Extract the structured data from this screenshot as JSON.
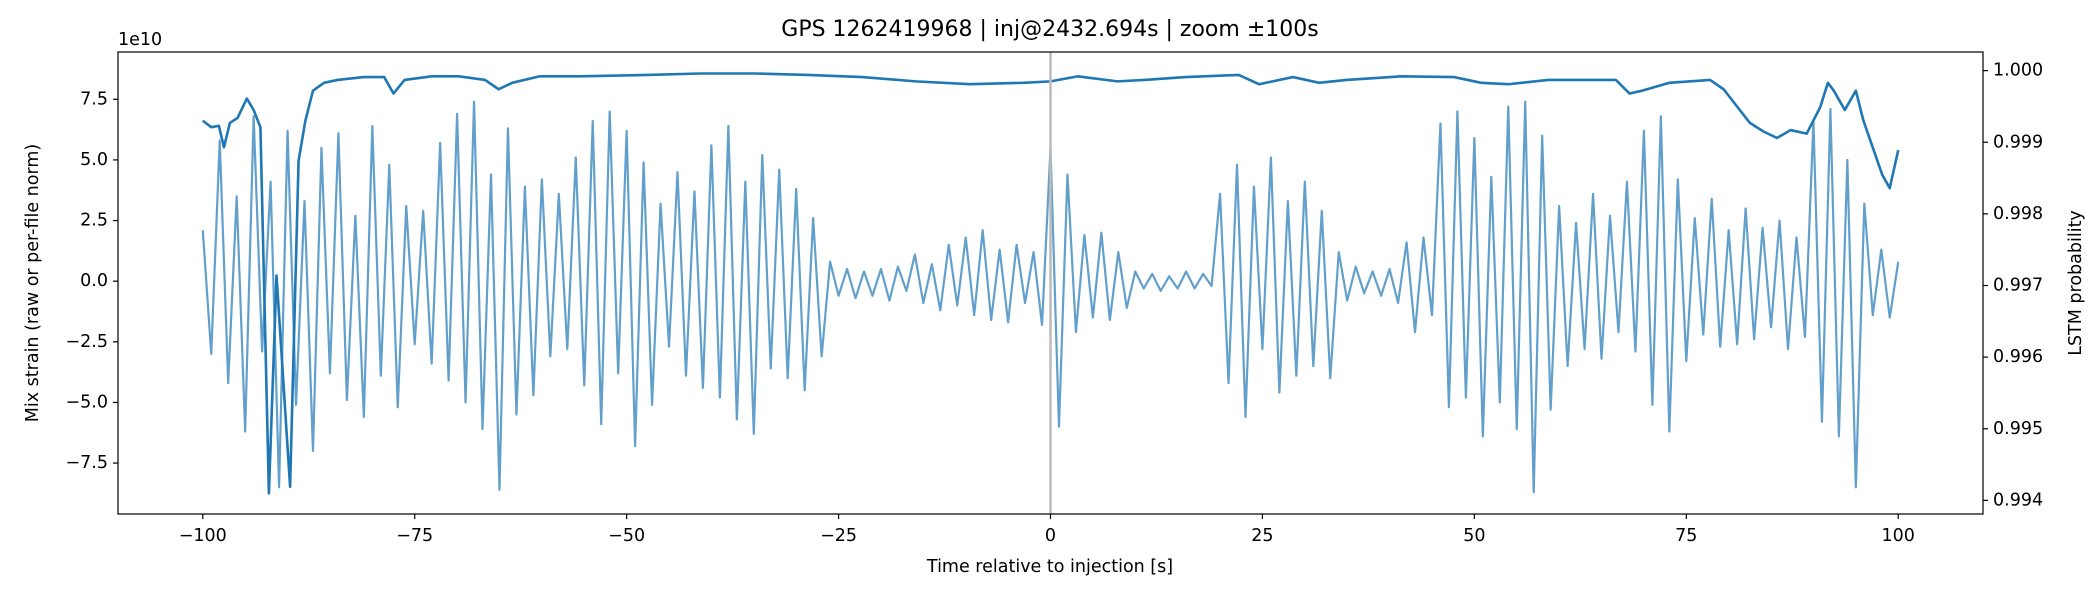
{
  "chart_data": {
    "type": "line",
    "title": "GPS 1262419968 | inj@2432.694s | zoom ±100s",
    "xlabel": "Time relative to injection [s]",
    "ylabel": "Mix strain (raw or per-file norm)",
    "y2label": "LSTM probability",
    "y_offset_label": "1e10",
    "vline": 0,
    "vline_color": "#bbbbbb",
    "xlim": [
      -110,
      110
    ],
    "xticks": [
      {
        "value": -100,
        "label": "−100"
      },
      {
        "value": -75,
        "label": "−75"
      },
      {
        "value": -50,
        "label": "−50"
      },
      {
        "value": -25,
        "label": "−25"
      },
      0,
      25,
      50,
      75,
      100
    ],
    "ylim": [
      -9.6,
      9.45
    ],
    "yticks": [
      {
        "value": -7.5,
        "label": "−7.5"
      },
      {
        "value": -5,
        "label": "−5.0"
      },
      {
        "value": -2.5,
        "label": "−2.5"
      },
      {
        "value": 0,
        "label": "0.0"
      },
      2.5,
      {
        "value": 5,
        "label": "5.0"
      },
      7.5
    ],
    "y2lim": [
      0.99381,
      1.00026
    ],
    "y2ticks": [
      0.994,
      0.995,
      0.996,
      0.997,
      0.998,
      0.999,
      {
        "value": 1,
        "label": "1.000"
      }
    ],
    "series": [
      {
        "color": "#62a0cb",
        "x": [
          -100,
          -99,
          -98,
          -97,
          -96,
          -95,
          -94,
          -93,
          -92,
          -91,
          -90,
          -89,
          -88,
          -87,
          -86,
          -85,
          -84,
          -83,
          -82,
          -81,
          -80,
          -79,
          -78,
          -77,
          -76,
          -75,
          -74,
          -73,
          -72,
          -71,
          -70,
          -69,
          -68,
          -67,
          -66,
          -65,
          -64,
          -63,
          -62,
          -61,
          -60,
          -59,
          -58,
          -57,
          -56,
          -55,
          -54,
          -53,
          -52,
          -51,
          -50,
          -49,
          -48,
          -47,
          -46,
          -45,
          -44,
          -43,
          -42,
          -41,
          -40,
          -39,
          -38,
          -37,
          -36,
          -35,
          -34,
          -33,
          -32,
          -31,
          -30,
          -29,
          -28,
          -27,
          -26,
          -25,
          -24,
          -23,
          -22,
          -21,
          -20,
          -19,
          -18,
          -17,
          -16,
          -15,
          -14,
          -13,
          -12,
          -11,
          -10,
          -9,
          -8,
          -7,
          -6,
          -5,
          -4,
          -3,
          -2,
          -1,
          0,
          1,
          2,
          3,
          4,
          5,
          6,
          7,
          8,
          9,
          10,
          11,
          12,
          13,
          14,
          15,
          16,
          17,
          18,
          19,
          20,
          21,
          22,
          23,
          24,
          25,
          26,
          27,
          28,
          29,
          30,
          31,
          32,
          33,
          34,
          35,
          36,
          37,
          38,
          39,
          40,
          41,
          42,
          43,
          44,
          45,
          46,
          47,
          48,
          49,
          50,
          51,
          52,
          53,
          54,
          55,
          56,
          57,
          58,
          59,
          60,
          61,
          62,
          63,
          64,
          65,
          66,
          67,
          68,
          69,
          70,
          71,
          72,
          73,
          74,
          75,
          76,
          77,
          78,
          79,
          80,
          81,
          82,
          83,
          84,
          85,
          86,
          87,
          88,
          89,
          90,
          91,
          92,
          93,
          94,
          95,
          96,
          97,
          98,
          99,
          100
        ],
        "values": [
          2.1,
          -3.0,
          5.8,
          -4.2,
          3.5,
          -6.2,
          6.8,
          -2.9,
          4.1,
          -8.5,
          6.2,
          -5.1,
          3.3,
          -7.0,
          5.5,
          -3.8,
          6.1,
          -4.9,
          2.7,
          -5.6,
          6.4,
          -3.9,
          4.8,
          -5.2,
          3.1,
          -2.6,
          2.9,
          -3.4,
          5.7,
          -4.1,
          6.9,
          -5.0,
          7.4,
          -6.1,
          4.4,
          -8.6,
          6.3,
          -5.5,
          3.9,
          -4.7,
          4.2,
          -3.1,
          3.6,
          -2.8,
          5.1,
          -4.3,
          6.6,
          -5.9,
          7.0,
          -3.8,
          6.2,
          -6.8,
          4.9,
          -5.1,
          3.2,
          -2.7,
          4.5,
          -3.9,
          3.7,
          -4.4,
          5.6,
          -4.8,
          6.4,
          -5.7,
          4.1,
          -6.3,
          5.2,
          -3.6,
          4.6,
          -4.0,
          3.8,
          -4.5,
          2.6,
          -3.1,
          0.8,
          -0.6,
          0.5,
          -0.7,
          0.4,
          -0.6,
          0.5,
          -0.8,
          0.6,
          -0.4,
          1.1,
          -0.9,
          0.7,
          -1.2,
          1.5,
          -1.0,
          1.8,
          -1.4,
          2.1,
          -1.6,
          1.3,
          -1.7,
          1.5,
          -0.9,
          1.2,
          -1.8,
          5.5,
          -6.0,
          4.4,
          -2.1,
          1.9,
          -1.5,
          2.0,
          -1.6,
          1.2,
          -1.1,
          0.4,
          -0.3,
          0.3,
          -0.4,
          0.2,
          -0.3,
          0.4,
          -0.3,
          0.3,
          -0.2,
          3.6,
          -4.2,
          4.8,
          -5.6,
          3.9,
          -2.8,
          5.1,
          -4.6,
          3.3,
          -3.9,
          4.1,
          -3.5,
          2.9,
          -4.0,
          1.2,
          -0.8,
          0.6,
          -0.5,
          0.4,
          -0.6,
          0.5,
          -0.9,
          1.6,
          -2.1,
          1.8,
          -1.4,
          6.5,
          -5.2,
          7.0,
          -4.8,
          5.9,
          -6.4,
          4.3,
          -5.0,
          7.2,
          -6.1,
          7.4,
          -8.7,
          6.0,
          -5.3,
          3.1,
          -3.5,
          2.4,
          -2.8,
          3.6,
          -3.2,
          2.7,
          -2.1,
          4.1,
          -2.9,
          6.2,
          -5.1,
          6.8,
          -6.2,
          4.2,
          -3.3,
          2.6,
          -2.2,
          3.4,
          -2.7,
          2.1,
          -2.6,
          3.0,
          -2.4,
          2.2,
          -1.9,
          2.5,
          -2.8,
          1.8,
          -2.3,
          6.6,
          -5.8,
          7.1,
          -6.4,
          5.0,
          -8.5,
          3.2,
          -1.4,
          1.3,
          -1.5,
          0.8
        ]
      },
      {
        "color": "#1f77b4",
        "axis": "y2",
        "x": [
          -100,
          -99.0,
          -98.1,
          -97.5,
          -96.8,
          -95.9,
          -94.8,
          -94.0,
          -93.2,
          -92.2,
          -91.3,
          -89.7,
          -88.7,
          -87.9,
          -87.0,
          -85.7,
          -84.1,
          -81.0,
          -78.6,
          -77.5,
          -76.2,
          -73.0,
          -69.8,
          -66.7,
          -65.1,
          -63.5,
          -60.3,
          -55.6,
          -47.6,
          -41.3,
          -34.9,
          -28.6,
          -22.2,
          -15.9,
          -9.5,
          -3.2,
          0,
          3.2,
          7.9,
          11.1,
          15.9,
          22.2,
          24.6,
          28.6,
          31.7,
          34.9,
          41.3,
          47.6,
          50.8,
          54.0,
          58.7,
          63.5,
          66.7,
          68.3,
          69.8,
          73.0,
          77.8,
          79.4,
          82.5,
          84.1,
          85.7,
          87.3,
          89.2,
          90.8,
          91.7,
          92.4,
          93.7,
          95.0,
          95.9,
          98.1,
          99.0,
          100
        ],
        "values": [
          0.9993,
          0.99921,
          0.99923,
          0.99893,
          0.99927,
          0.99934,
          0.99961,
          0.99945,
          0.99921,
          0.9941,
          0.99714,
          0.99419,
          0.99874,
          0.9993,
          0.99972,
          0.99983,
          0.99987,
          0.99991,
          0.99991,
          0.99968,
          0.99987,
          0.99992,
          0.99992,
          0.99987,
          0.99974,
          0.99983,
          0.99992,
          0.99992,
          0.99994,
          0.99996,
          0.99996,
          0.99994,
          0.99991,
          0.99985,
          0.99981,
          0.99983,
          0.99985,
          0.99992,
          0.99985,
          0.99987,
          0.99991,
          0.99994,
          0.99981,
          0.99991,
          0.99983,
          0.99987,
          0.99992,
          0.99991,
          0.99983,
          0.99981,
          0.99987,
          0.99987,
          0.99987,
          0.99968,
          0.99972,
          0.99983,
          0.99987,
          0.99974,
          0.99927,
          0.99915,
          0.99906,
          0.99917,
          0.99912,
          0.99949,
          0.99983,
          0.99972,
          0.99945,
          0.99972,
          0.9993,
          0.99855,
          0.99836,
          0.99889
        ]
      }
    ]
  }
}
